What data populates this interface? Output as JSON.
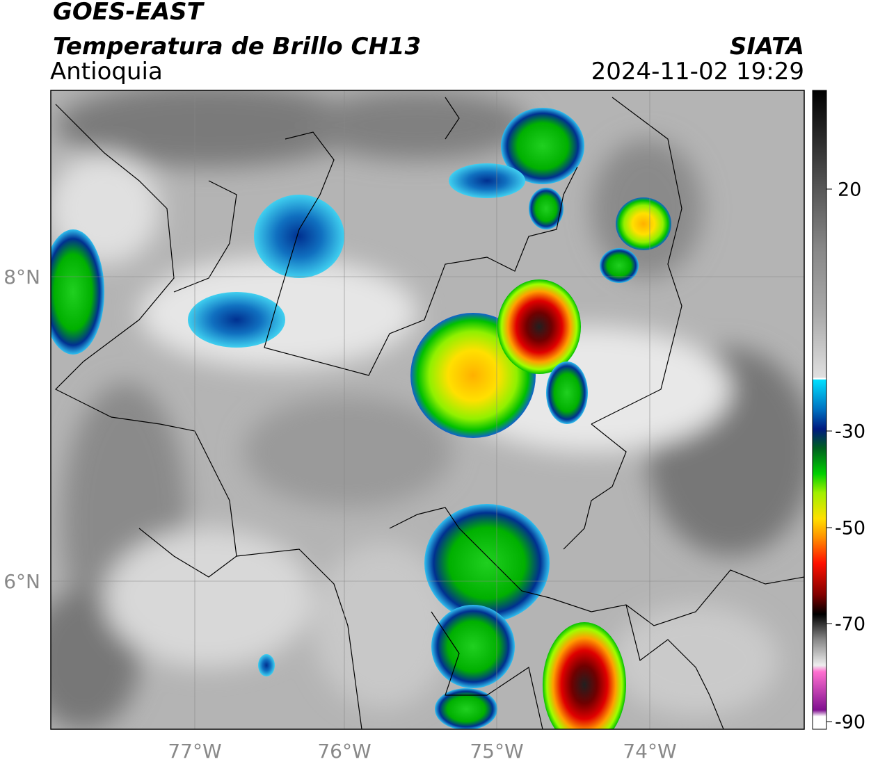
{
  "header": {
    "title": "GOES-EAST",
    "subtitle": "Temperatura de Brillo CH13",
    "region": "Antioquia",
    "source": "SIATA",
    "datetime": "2024-11-02 19:29"
  },
  "map": {
    "lon_labels": [
      "77°W",
      "76°W",
      "75°W",
      "74°W"
    ],
    "lat_labels": [
      "8°N",
      "6°N"
    ]
  },
  "colorbar": {
    "ticks": [
      20,
      -30,
      -50,
      -70,
      -90
    ]
  }
}
